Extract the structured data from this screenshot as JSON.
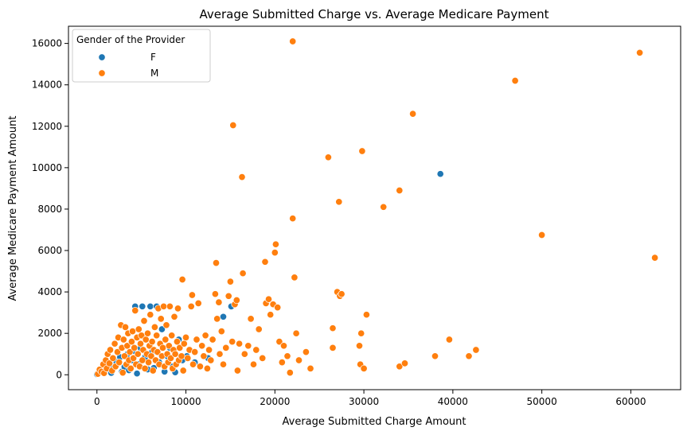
{
  "chart_data": {
    "type": "scatter",
    "title": "Average Submitted Charge vs. Average Medicare Payment",
    "xlabel": "Average Submitted Charge Amount",
    "ylabel": "Average Medicare Payment Amount",
    "xlim": [
      -3200,
      65600
    ],
    "ylim": [
      -720,
      16830
    ],
    "xticks": [
      0,
      10000,
      20000,
      30000,
      40000,
      50000,
      60000
    ],
    "yticks": [
      0,
      2000,
      4000,
      6000,
      8000,
      10000,
      12000,
      14000,
      16000
    ],
    "grid": false,
    "legend": {
      "title": "Gender of the Provider",
      "placement": "top-left"
    },
    "colors": {
      "F": "#1f77b4",
      "M": "#ff7f0e"
    },
    "series": [
      {
        "name": "F",
        "points": [
          [
            0,
            20
          ],
          [
            200,
            60
          ],
          [
            600,
            110
          ],
          [
            900,
            180
          ],
          [
            1300,
            260
          ],
          [
            1600,
            90
          ],
          [
            1900,
            430
          ],
          [
            2200,
            610
          ],
          [
            2600,
            850
          ],
          [
            2800,
            150
          ],
          [
            3100,
            380
          ],
          [
            3400,
            990
          ],
          [
            3600,
            220
          ],
          [
            3900,
            700
          ],
          [
            4100,
            1150
          ],
          [
            4300,
            3300
          ],
          [
            4500,
            60
          ],
          [
            4700,
            520
          ],
          [
            4900,
            1300
          ],
          [
            5100,
            3300
          ],
          [
            5400,
            840
          ],
          [
            5700,
            260
          ],
          [
            6000,
            3300
          ],
          [
            6200,
            1100
          ],
          [
            6400,
            330
          ],
          [
            6700,
            3300
          ],
          [
            7000,
            600
          ],
          [
            7300,
            2200
          ],
          [
            7600,
            150
          ],
          [
            7900,
            900
          ],
          [
            8200,
            1300
          ],
          [
            8500,
            400
          ],
          [
            8800,
            120
          ],
          [
            9200,
            1700
          ],
          [
            9600,
            700
          ],
          [
            10100,
            900
          ],
          [
            11000,
            600
          ],
          [
            12500,
            800
          ],
          [
            14200,
            2800
          ],
          [
            15100,
            3300
          ],
          [
            38600,
            9700
          ]
        ]
      },
      {
        "name": "M",
        "points": [
          [
            100,
            40
          ],
          [
            300,
            250
          ],
          [
            500,
            150
          ],
          [
            700,
            500
          ],
          [
            800,
            80
          ],
          [
            1000,
            700
          ],
          [
            1100,
            300
          ],
          [
            1200,
            1000
          ],
          [
            1400,
            550
          ],
          [
            1500,
            1200
          ],
          [
            1700,
            200
          ],
          [
            1800,
            800
          ],
          [
            2000,
            1500
          ],
          [
            2100,
            400
          ],
          [
            2300,
            1100
          ],
          [
            2400,
            1800
          ],
          [
            2500,
            600
          ],
          [
            2700,
            2400
          ],
          [
            2800,
            1300
          ],
          [
            2900,
            100
          ],
          [
            3000,
            1700
          ],
          [
            3100,
            900
          ],
          [
            3200,
            2300
          ],
          [
            3300,
            500
          ],
          [
            3400,
            1400
          ],
          [
            3500,
            2000
          ],
          [
            3600,
            700
          ],
          [
            3700,
            1100
          ],
          [
            3800,
            300
          ],
          [
            3900,
            1600
          ],
          [
            4000,
            2100
          ],
          [
            4100,
            800
          ],
          [
            4200,
            1300
          ],
          [
            4300,
            3100
          ],
          [
            4400,
            500
          ],
          [
            4500,
            1800
          ],
          [
            4600,
            1000
          ],
          [
            4700,
            2200
          ],
          [
            4800,
            400
          ],
          [
            4900,
            1500
          ],
          [
            5000,
            1900
          ],
          [
            5100,
            700
          ],
          [
            5200,
            1200
          ],
          [
            5300,
            2600
          ],
          [
            5400,
            300
          ],
          [
            5500,
            1700
          ],
          [
            5600,
            1000
          ],
          [
            5700,
            2000
          ],
          [
            5800,
            600
          ],
          [
            5900,
            1400
          ],
          [
            6000,
            2900
          ],
          [
            6100,
            900
          ],
          [
            6200,
            1600
          ],
          [
            6300,
            200
          ],
          [
            6400,
            1200
          ],
          [
            6500,
            2300
          ],
          [
            6600,
            700
          ],
          [
            6700,
            1900
          ],
          [
            6800,
            1100
          ],
          [
            6900,
            3200
          ],
          [
            7000,
            500
          ],
          [
            7100,
            1500
          ],
          [
            7200,
            2700
          ],
          [
            7300,
            900
          ],
          [
            7400,
            1300
          ],
          [
            7500,
            3300
          ],
          [
            7600,
            400
          ],
          [
            7700,
            1700
          ],
          [
            7800,
            2400
          ],
          [
            7900,
            1000
          ],
          [
            8000,
            600
          ],
          [
            8100,
            1400
          ],
          [
            8200,
            3300
          ],
          [
            8300,
            800
          ],
          [
            8400,
            1900
          ],
          [
            8500,
            300
          ],
          [
            8600,
            1200
          ],
          [
            8700,
            2800
          ],
          [
            8800,
            1000
          ],
          [
            8900,
            500
          ],
          [
            9000,
            1600
          ],
          [
            9100,
            3200
          ],
          [
            9200,
            700
          ],
          [
            9300,
            1300
          ],
          [
            9500,
            900
          ],
          [
            9600,
            4600
          ],
          [
            9700,
            200
          ],
          [
            9800,
            1500
          ],
          [
            10000,
            1800
          ],
          [
            10200,
            800
          ],
          [
            10400,
            1200
          ],
          [
            10600,
            3300
          ],
          [
            10700,
            3850
          ],
          [
            10800,
            500
          ],
          [
            11000,
            1100
          ],
          [
            11200,
            1700
          ],
          [
            11400,
            3450
          ],
          [
            11600,
            400
          ],
          [
            11800,
            1400
          ],
          [
            12000,
            900
          ],
          [
            12200,
            1900
          ],
          [
            12400,
            300
          ],
          [
            12600,
            1200
          ],
          [
            12800,
            700
          ],
          [
            13000,
            1700
          ],
          [
            13300,
            3900
          ],
          [
            13400,
            5400
          ],
          [
            13500,
            2700
          ],
          [
            13700,
            3500
          ],
          [
            13800,
            1000
          ],
          [
            14000,
            2100
          ],
          [
            14200,
            500
          ],
          [
            14500,
            1300
          ],
          [
            14800,
            3800
          ],
          [
            15000,
            4500
          ],
          [
            15200,
            1600
          ],
          [
            15300,
            12050
          ],
          [
            15500,
            3400
          ],
          [
            15700,
            3600
          ],
          [
            15800,
            200
          ],
          [
            16000,
            1500
          ],
          [
            16300,
            9550
          ],
          [
            16400,
            4900
          ],
          [
            16600,
            1000
          ],
          [
            17000,
            1400
          ],
          [
            17300,
            2700
          ],
          [
            17600,
            500
          ],
          [
            17900,
            1200
          ],
          [
            18200,
            2200
          ],
          [
            18600,
            800
          ],
          [
            18900,
            5450
          ],
          [
            19000,
            3450
          ],
          [
            19300,
            3650
          ],
          [
            19500,
            2900
          ],
          [
            19800,
            3400
          ],
          [
            20000,
            5900
          ],
          [
            20100,
            6300
          ],
          [
            20300,
            3250
          ],
          [
            20500,
            1600
          ],
          [
            20800,
            600
          ],
          [
            21000,
            1400
          ],
          [
            21400,
            900
          ],
          [
            21700,
            100
          ],
          [
            22000,
            7550
          ],
          [
            22000,
            16100
          ],
          [
            22200,
            4700
          ],
          [
            22400,
            2000
          ],
          [
            22700,
            700
          ],
          [
            23500,
            1100
          ],
          [
            24000,
            300
          ],
          [
            26000,
            10500
          ],
          [
            26500,
            2250
          ],
          [
            26500,
            1300
          ],
          [
            27000,
            4000
          ],
          [
            27200,
            8350
          ],
          [
            27300,
            3800
          ],
          [
            27500,
            3900
          ],
          [
            29500,
            1400
          ],
          [
            29600,
            500
          ],
          [
            29700,
            2000
          ],
          [
            29800,
            10800
          ],
          [
            30000,
            300
          ],
          [
            30300,
            2900
          ],
          [
            32200,
            8100
          ],
          [
            34000,
            8900
          ],
          [
            34000,
            400
          ],
          [
            34600,
            550
          ],
          [
            35500,
            12600
          ],
          [
            38000,
            900
          ],
          [
            39600,
            1700
          ],
          [
            41800,
            900
          ],
          [
            42600,
            1200
          ],
          [
            47000,
            14200
          ],
          [
            50000,
            6750
          ],
          [
            61000,
            15550
          ],
          [
            62700,
            5650
          ]
        ]
      }
    ]
  }
}
